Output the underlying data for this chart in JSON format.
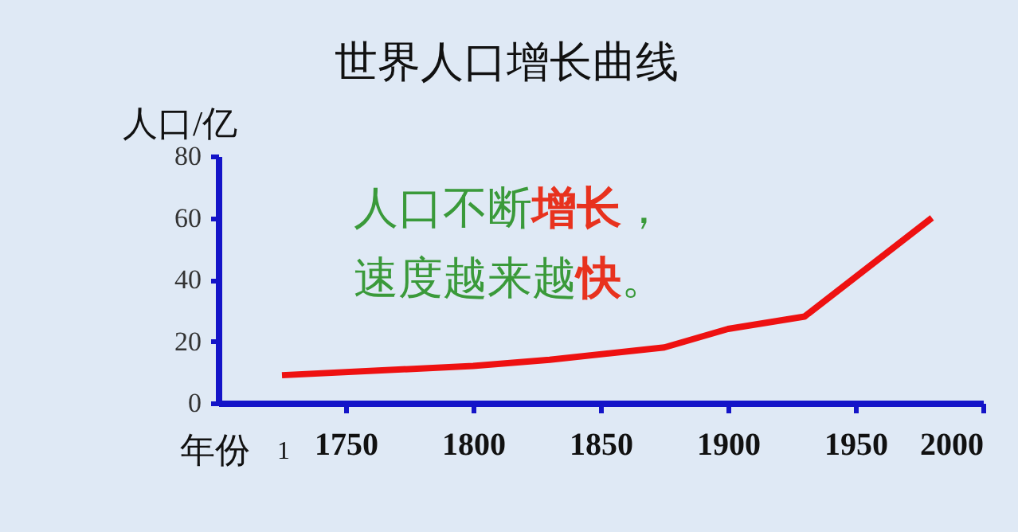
{
  "chart_data": {
    "type": "line",
    "title": "世界人口增长曲线",
    "ylabel": "人口/亿",
    "xlabel": "年份",
    "x": [
      1725,
      1800,
      1830,
      1875,
      1900,
      1930,
      1980
    ],
    "series": [
      {
        "color": "#ee1111",
        "values": [
          9,
          12,
          14,
          18,
          24,
          28,
          60
        ]
      }
    ],
    "xlim": [
      1700,
      2000
    ],
    "xticks": [
      1750,
      1800,
      1850,
      1900,
      1950,
      2000
    ],
    "ylim": [
      0,
      80
    ],
    "yticks": [
      0,
      20,
      40,
      60,
      80
    ],
    "grid": false,
    "legend": false,
    "marker": "none",
    "line_style": "solid",
    "annotations": [
      "人口不断",
      "增长",
      "，",
      "速度越来越",
      "快",
      "。",
      "1"
    ]
  }
}
